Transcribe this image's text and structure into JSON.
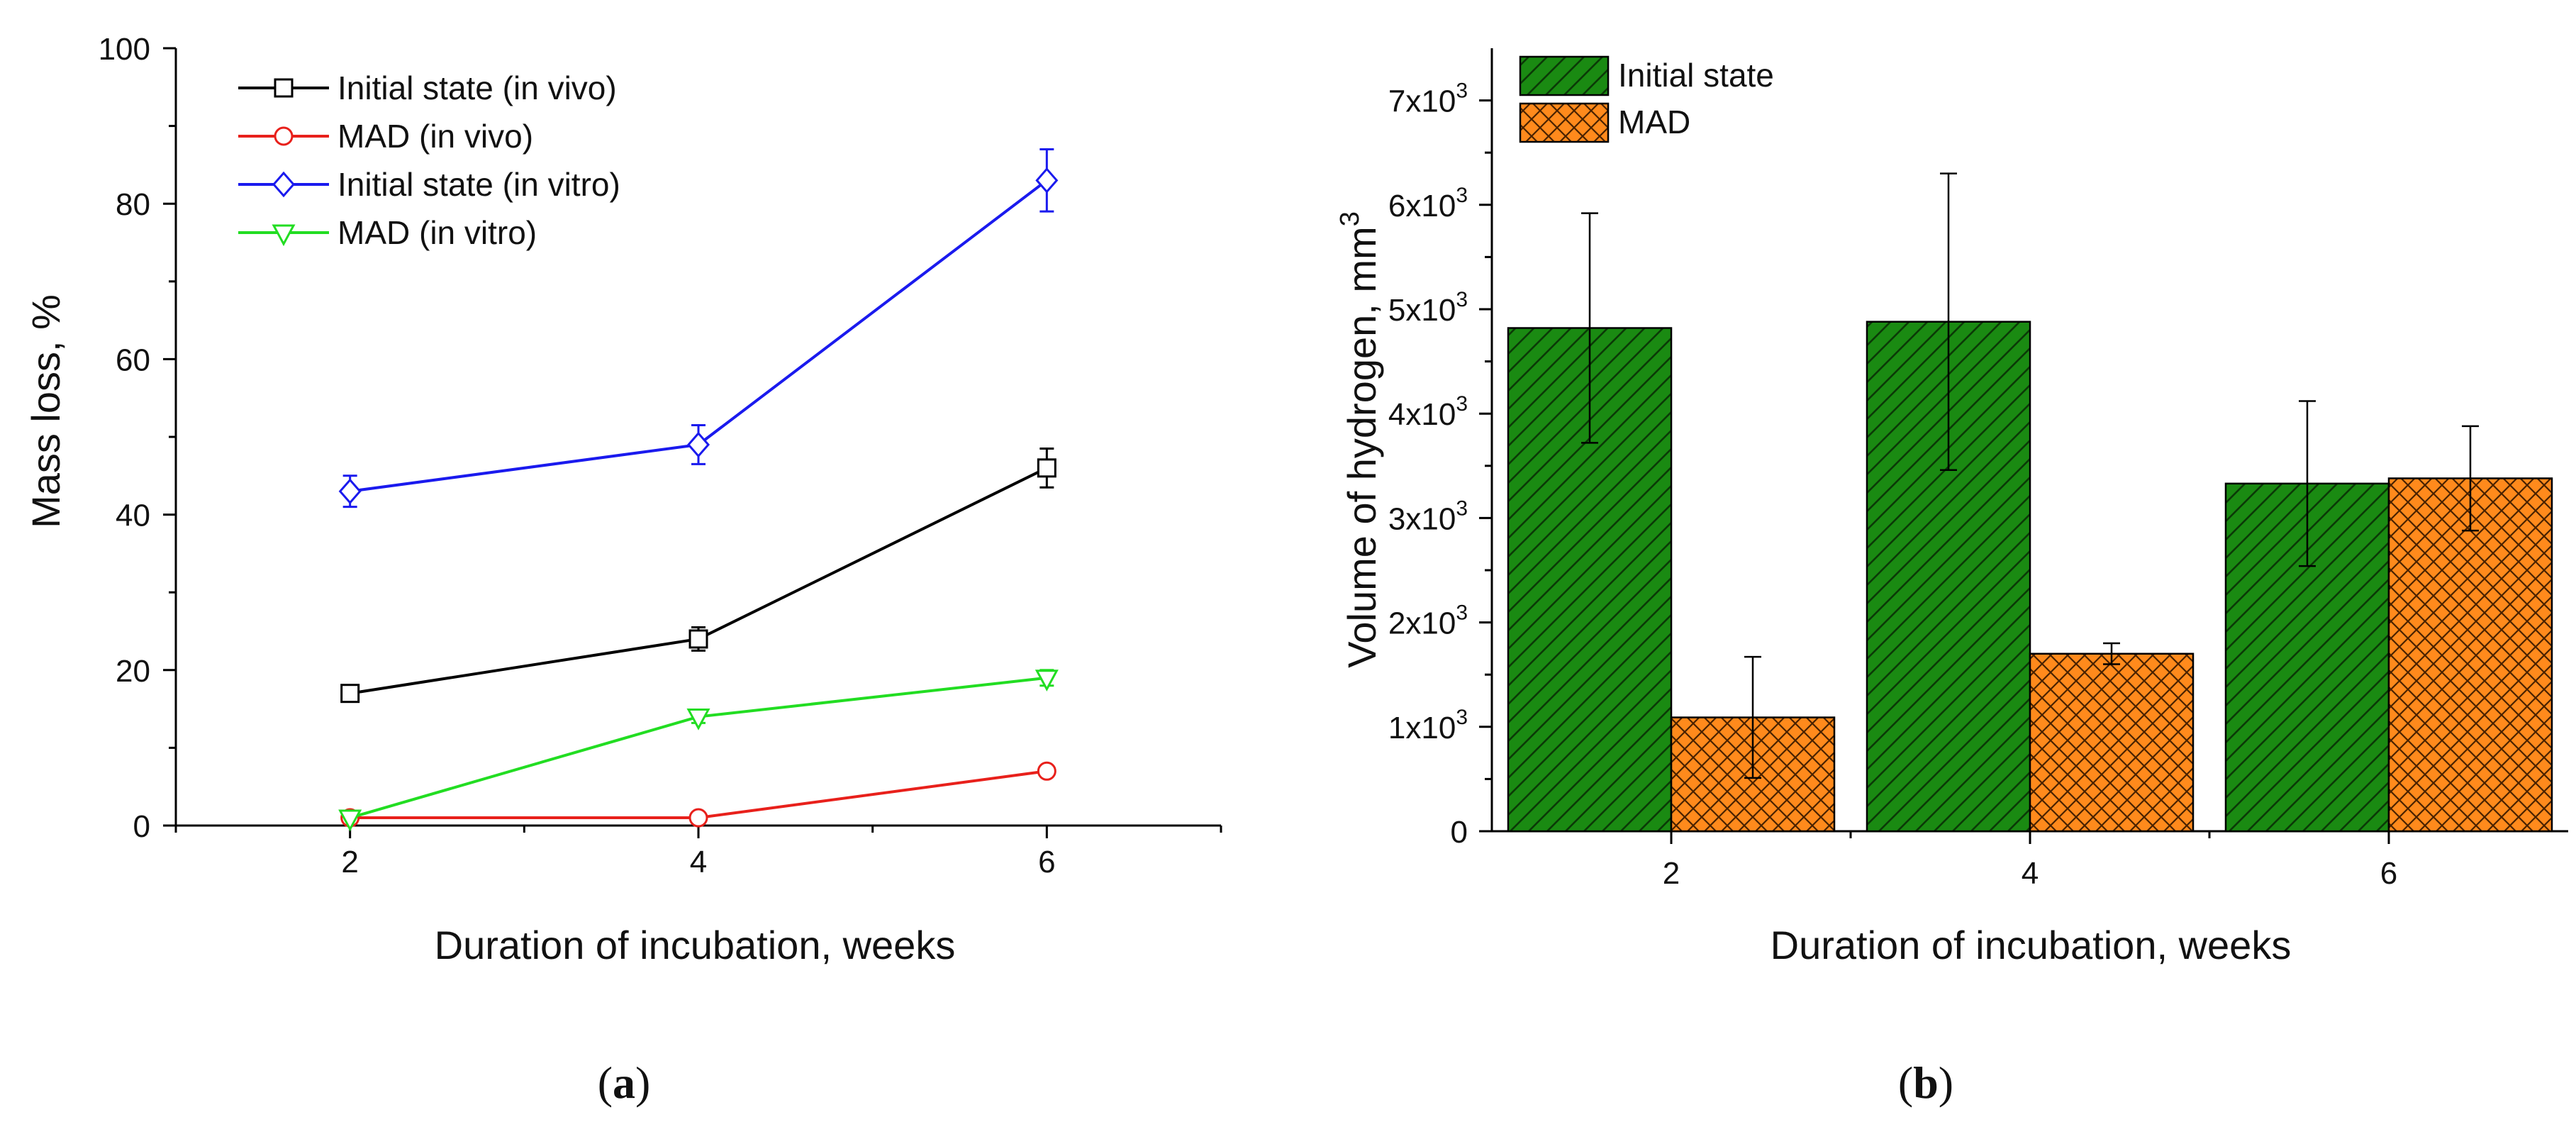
{
  "chart_data": [
    {
      "panel_label": "a",
      "type": "line",
      "title": "",
      "xlabel": "Duration of incubation, weeks",
      "ylabel": "Mass loss, %",
      "xlim": [
        1,
        7
      ],
      "ylim": [
        0,
        100
      ],
      "xticks": [
        2,
        4,
        6
      ],
      "yticks": [
        0,
        20,
        40,
        60,
        80,
        100
      ],
      "x": [
        2,
        4,
        6
      ],
      "grid": false,
      "legend": "top-left",
      "series": [
        {
          "name": "Initial state (in vivo)",
          "color": "#000000",
          "marker": "square",
          "values": [
            17,
            24,
            46
          ],
          "errors": [
            0.8,
            1.5,
            2.5
          ]
        },
        {
          "name": "MAD (in vivo)",
          "color": "#e8201b",
          "marker": "circle",
          "values": [
            1,
            1,
            7
          ],
          "errors": [
            0,
            0,
            0.5
          ]
        },
        {
          "name": "Initial state (in vitro)",
          "color": "#1a1aee",
          "marker": "diamond",
          "values": [
            43,
            49,
            83
          ],
          "errors": [
            2,
            2.5,
            4
          ]
        },
        {
          "name": "MAD (in vitro)",
          "color": "#22dd22",
          "marker": "triangle-down",
          "values": [
            1,
            14,
            19
          ],
          "errors": [
            0,
            0.8,
            1
          ]
        }
      ]
    },
    {
      "panel_label": "b",
      "type": "bar",
      "title": "",
      "xlabel": "Duration of incubation, weeks",
      "ylabel": "Volume of hydrogen, mm",
      "ylabel_sup": "3",
      "categories": [
        "2",
        "4",
        "6"
      ],
      "ylim": [
        0,
        7500
      ],
      "ytick_values": [
        0,
        1000,
        2000,
        3000,
        4000,
        5000,
        6000,
        7000
      ],
      "ytick_labels": [
        {
          "base": "0",
          "sup": ""
        },
        {
          "base": "1x10",
          "sup": "3"
        },
        {
          "base": "2x10",
          "sup": "3"
        },
        {
          "base": "3x10",
          "sup": "3"
        },
        {
          "base": "4x10",
          "sup": "3"
        },
        {
          "base": "5x10",
          "sup": "3"
        },
        {
          "base": "6x10",
          "sup": "3"
        },
        {
          "base": "7x10",
          "sup": "3"
        }
      ],
      "grid": false,
      "legend": "top-left",
      "series": [
        {
          "name": "Initial state",
          "color": "#1a8a12",
          "pattern": "diagonal",
          "values": [
            4820,
            4880,
            3330
          ],
          "errors": [
            1100,
            1420,
            790
          ]
        },
        {
          "name": "MAD",
          "color": "#ff8a1c",
          "pattern": "crosshatch",
          "values": [
            1090,
            1700,
            3380
          ],
          "errors": [
            580,
            100,
            500
          ]
        }
      ]
    }
  ]
}
